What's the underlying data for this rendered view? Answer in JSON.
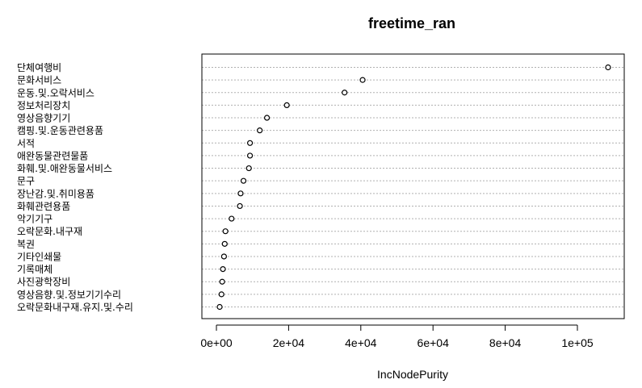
{
  "chart_data": {
    "type": "scatter",
    "title": "freetime_ran",
    "xlabel": "IncNodePurity",
    "ylabel": "",
    "xlim": [
      -5000,
      114000
    ],
    "grid": "horizontal dotted guide per category",
    "x_ticks": [
      {
        "value": 0,
        "label": "0e+00"
      },
      {
        "value": 20000,
        "label": "2e+04"
      },
      {
        "value": 40000,
        "label": "4e+04"
      },
      {
        "value": 60000,
        "label": "6e+04"
      },
      {
        "value": 80000,
        "label": "8e+04"
      },
      {
        "value": 100000,
        "label": "1e+05"
      }
    ],
    "categories": [
      "단체여행비",
      "문화서비스",
      "운동.및.오락서비스",
      "정보처리장치",
      "영상음향기기",
      "캠핑.및.운동관련용품",
      "서적",
      "애완동물관련물품",
      "화훼.및.애완동물서비스",
      "문구",
      "장난감.및.취미용품",
      "화훼관련용품",
      "악기기구",
      "오락문화.내구재",
      "복권",
      "기타인쇄물",
      "기록매체",
      "사진광학장비",
      "영상음향.및.정보기기수리",
      "오락문화내구재.유지.및.수리"
    ],
    "values": [
      108500,
      40500,
      35500,
      19500,
      14000,
      12000,
      9300,
      9300,
      9000,
      7500,
      6700,
      6500,
      4200,
      2500,
      2300,
      2100,
      1800,
      1600,
      1400,
      900
    ]
  }
}
